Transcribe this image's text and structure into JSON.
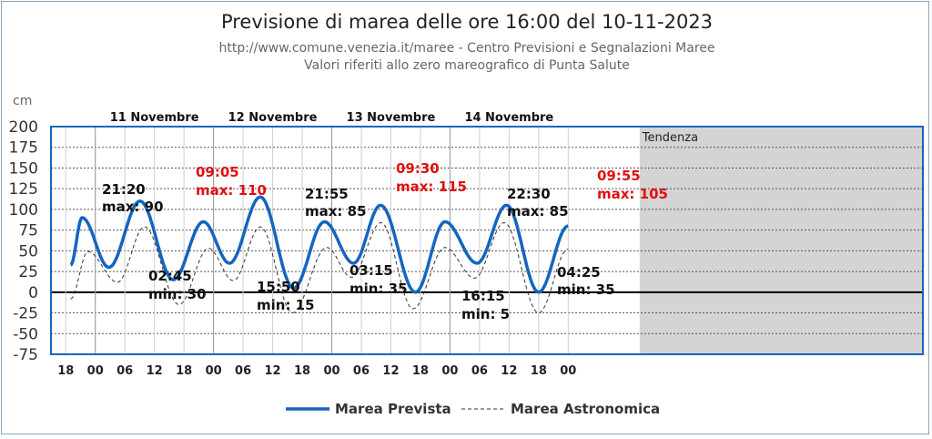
{
  "chart_data": {
    "type": "line",
    "title": "Previsione di marea delle ore 16:00 del 10-11-2023",
    "subtitle_1": "http://www.comune.venezia.it/maree - Centro Previsioni e Segnalazioni Maree",
    "subtitle_2": "Valori riferiti allo zero mareografico di Punta Salute",
    "ylabel": "cm",
    "ylim": [
      -75,
      200
    ],
    "y_ticks": [
      "200",
      "175",
      "150",
      "125",
      "100",
      "75",
      "50",
      "25",
      "0",
      "-25",
      "-50",
      "-75"
    ],
    "x_range_hours": [
      -9,
      168
    ],
    "x_ticks": [
      "18",
      "00",
      "06",
      "12",
      "18",
      "00",
      "06",
      "12",
      "18",
      "00",
      "06",
      "12",
      "18",
      "00",
      "06",
      "12",
      "18",
      "00"
    ],
    "days": [
      "11 Novembre",
      "12 Novembre",
      "13 Novembre",
      "14 Novembre"
    ],
    "tendenza_label": "Tendenza",
    "tendenza_start_hour": 110.5,
    "grid": true,
    "series": [
      {
        "name": "Marea Prevista",
        "color": "#1565c0",
        "style": "solid",
        "points": [
          [
            -5,
            33
          ],
          [
            -2.67,
            90
          ],
          [
            2.75,
            30
          ],
          [
            9.08,
            110
          ],
          [
            15.83,
            15
          ],
          [
            21.92,
            85
          ],
          [
            27.25,
            35
          ],
          [
            33.5,
            115
          ],
          [
            40.25,
            5
          ],
          [
            46.5,
            85
          ],
          [
            52.42,
            35
          ],
          [
            57.92,
            105
          ],
          [
            65,
            0
          ],
          [
            71,
            85
          ],
          [
            77.5,
            35
          ],
          [
            83.5,
            105
          ],
          [
            90,
            0
          ],
          [
            96,
            80
          ]
        ]
      },
      {
        "name": "Marea Astronomica",
        "color": "#333333",
        "style": "dashed",
        "points": [
          [
            -5,
            -8
          ],
          [
            -1.5,
            49
          ],
          [
            4.5,
            12
          ],
          [
            10,
            79
          ],
          [
            17,
            -15
          ],
          [
            23,
            53
          ],
          [
            28,
            14
          ],
          [
            33.5,
            79
          ],
          [
            40,
            -25
          ],
          [
            47,
            54
          ],
          [
            52,
            18
          ],
          [
            58,
            84
          ],
          [
            64.5,
            -20
          ],
          [
            71,
            54
          ],
          [
            77,
            17
          ],
          [
            83,
            84
          ],
          [
            90,
            -25
          ],
          [
            96,
            52
          ]
        ]
      }
    ],
    "annotations": [
      {
        "time": "21:20",
        "label": "max: 90",
        "color": "#111111"
      },
      {
        "time": "09:05",
        "label": "max: 110",
        "color": "#e01010"
      },
      {
        "time": "21:55",
        "label": "max: 85",
        "color": "#111111"
      },
      {
        "time": "09:30",
        "label": "max: 115",
        "color": "#e01010"
      },
      {
        "time": "22:30",
        "label": "max: 85",
        "color": "#111111"
      },
      {
        "time": "09:55",
        "label": "max: 105",
        "color": "#e01010"
      },
      {
        "time": "02:45",
        "label": "min: 30",
        "color": "#111111"
      },
      {
        "time": "15:50",
        "label": "min: 15",
        "color": "#111111"
      },
      {
        "time": "03:15",
        "label": "min: 35",
        "color": "#111111"
      },
      {
        "time": "16:15",
        "label": "min: 5",
        "color": "#111111"
      },
      {
        "time": "04:25",
        "label": "min: 35",
        "color": "#111111"
      }
    ],
    "legend": [
      "Marea Prevista",
      "Marea Astronomica"
    ],
    "legend_position": "bottom-center"
  }
}
